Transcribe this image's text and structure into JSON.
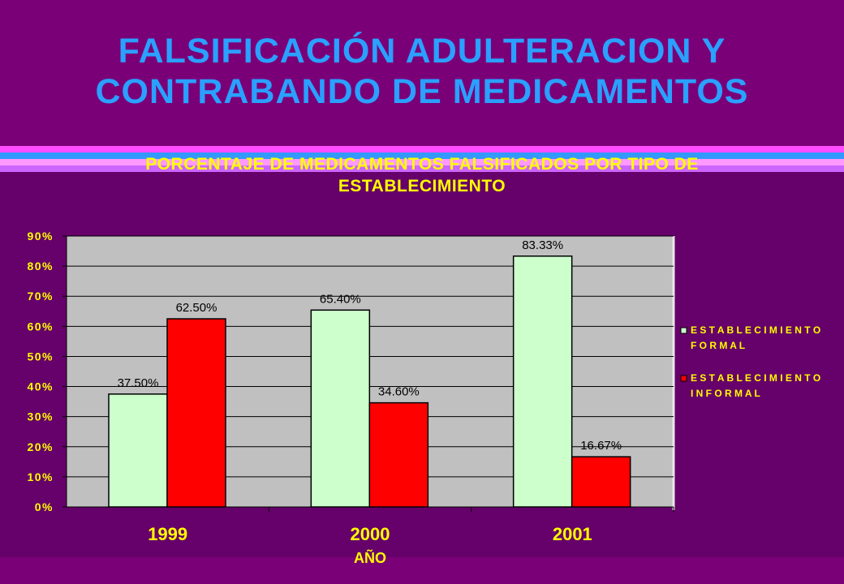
{
  "page": {
    "title_line1": "FALSIFICACIÓN ADULTERACION Y",
    "title_line2": "CONTRABANDO DE MEDICAMENTOS"
  },
  "colors": {
    "background": "#7a0078",
    "panel": "#66006a",
    "title": "#2aa0ff",
    "chart_text": "#ffff00",
    "plot_area": "#c0c0c0",
    "formal": "#ccffcc",
    "informal": "#ff0000",
    "stripes": [
      "#ff4dff",
      "#3399ff",
      "#ff99ff",
      "#cc66ff"
    ]
  },
  "chart_data": {
    "type": "bar",
    "title_line1": "PORCENTAJE DE MEDICAMENTOS FALSIFICADOS POR TIPO DE",
    "title_line2": "ESTABLECIMIENTO",
    "xlabel": "AÑO",
    "ylabel": "",
    "categories": [
      "1999",
      "2000",
      "2001"
    ],
    "ylim": [
      0,
      90
    ],
    "yticks": [
      "0%",
      "10%",
      "20%",
      "30%",
      "40%",
      "50%",
      "60%",
      "70%",
      "80%",
      "90%"
    ],
    "grid": true,
    "legend_position": "right",
    "series": [
      {
        "name": "ESTABLECIMIENTO FORMAL",
        "legend_line1": "E S T A B L E C I M I E N T O",
        "legend_line2": "F O R M A L",
        "color": "#ccffcc",
        "values": [
          37.5,
          65.4,
          83.33
        ],
        "labels": [
          "37.50%",
          "65.40%",
          "83.33%"
        ]
      },
      {
        "name": "ESTABLECIMIENTO INFORMAL",
        "legend_line1": "E S T A B L E C I M I E N T O",
        "legend_line2": "I N F O R M A L",
        "color": "#ff0000",
        "values": [
          62.5,
          34.6,
          16.67
        ],
        "labels": [
          "62.50%",
          "34.60%",
          "16.67%"
        ]
      }
    ]
  }
}
